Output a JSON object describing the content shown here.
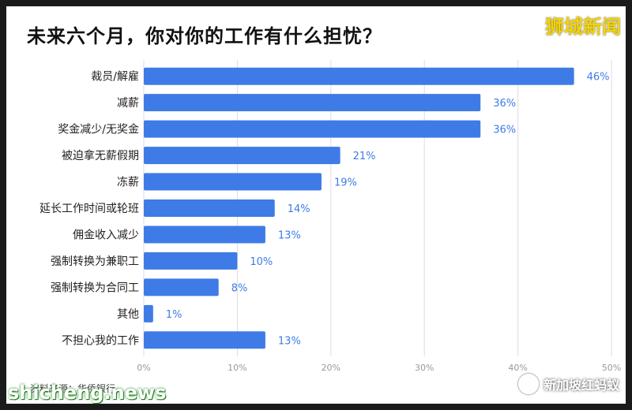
{
  "page": {
    "title": "未来六个月，你对你的工作有什么担忧？",
    "watermark": "狮城新闻",
    "source": "资料来源：华侨银行",
    "wechat_label": "新加坡红蚂蚁",
    "site": "shicheng.news"
  },
  "chart_data": {
    "type": "bar",
    "orientation": "horizontal",
    "title": "未来六个月，你对你的工作有什么担忧？",
    "categories": [
      "裁员/解雇",
      "减薪",
      "奖金减少/无奖金",
      "被迫拿无薪假期",
      "冻薪",
      "延长工作时间或轮班",
      "佣金收入减少",
      "强制转换为兼职工",
      "强制转换为合同工",
      "其他",
      "不担心我的工作"
    ],
    "values": [
      46,
      36,
      36,
      21,
      19,
      14,
      13,
      10,
      8,
      1,
      13
    ],
    "value_labels": [
      "46%",
      "36%",
      "36%",
      "21%",
      "19%",
      "14%",
      "13%",
      "10%",
      "8%",
      "1%",
      "13%"
    ],
    "xlim": [
      0,
      50
    ],
    "ticks": [
      0,
      10,
      20,
      30,
      40,
      50
    ],
    "tick_labels": [
      "0%",
      "10%",
      "20%",
      "30%",
      "40%",
      "50%"
    ],
    "grid": true,
    "colors": {
      "bar": "#3e7be6",
      "label": "#3e7be6",
      "grid": "#dddddd"
    }
  }
}
